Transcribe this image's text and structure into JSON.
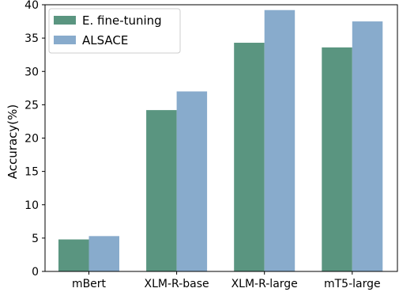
{
  "chart_data": {
    "type": "bar",
    "title": "",
    "xlabel": "",
    "ylabel": "Accuracy(%)",
    "ylim": [
      0,
      40
    ],
    "yticks": [
      0,
      5,
      10,
      15,
      20,
      25,
      30,
      35,
      40
    ],
    "grid": false,
    "legend_position": "top-left",
    "categories": [
      "mBert",
      "XLM-R-base",
      "XLM-R-large",
      "mT5-large"
    ],
    "series": [
      {
        "name": "E. fine-tuning",
        "color": "#5a9580",
        "values": [
          4.8,
          24.2,
          34.3,
          33.6
        ]
      },
      {
        "name": "ALSACE",
        "color": "#88abcc",
        "values": [
          5.3,
          27.0,
          39.2,
          37.5
        ]
      }
    ]
  }
}
